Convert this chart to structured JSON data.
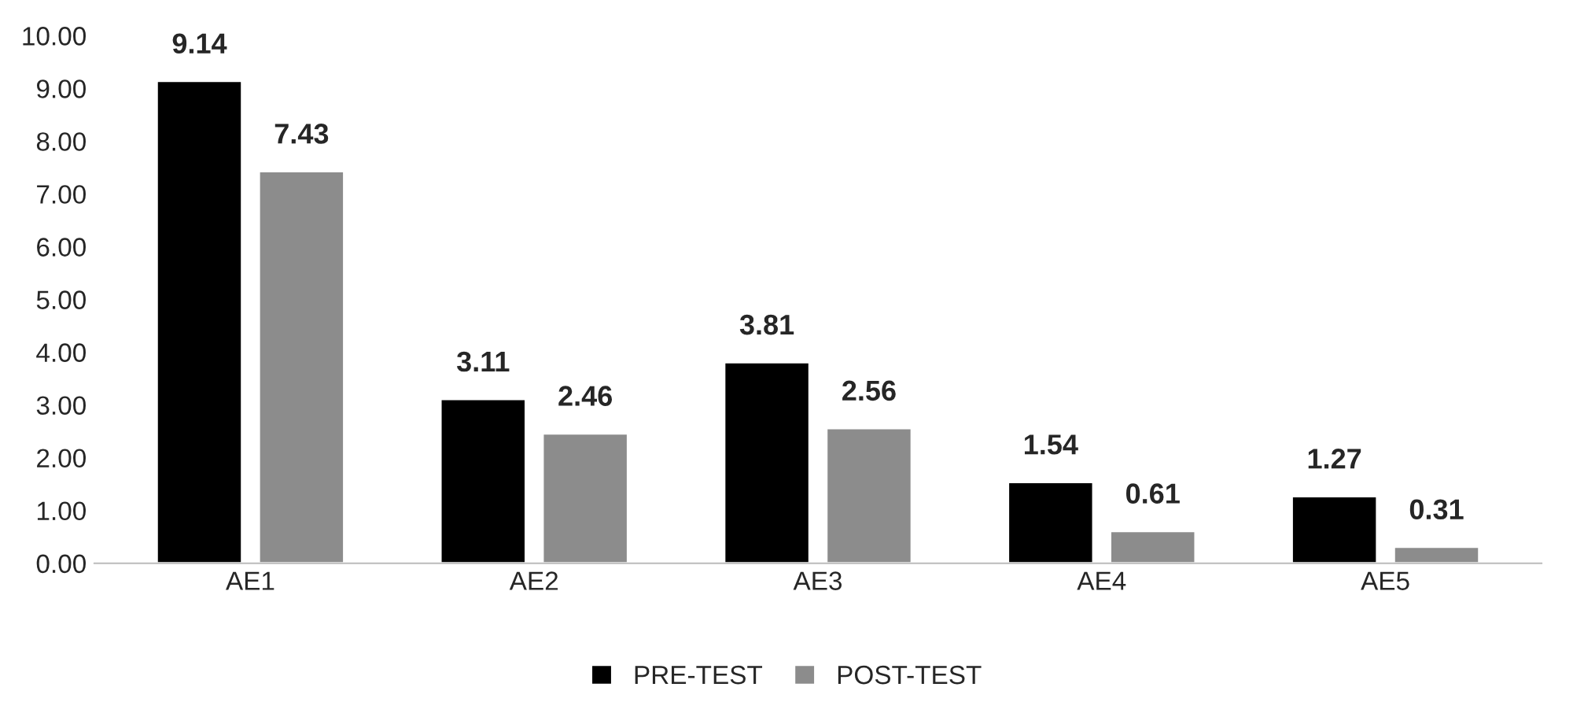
{
  "chart_data": {
    "type": "bar",
    "categories": [
      "AE1",
      "AE2",
      "AE3",
      "AE4",
      "AE5"
    ],
    "series": [
      {
        "name": "PRE-TEST",
        "color": "#000000",
        "values": [
          9.14,
          3.11,
          3.81,
          1.54,
          1.27
        ]
      },
      {
        "name": "POST-TEST",
        "color": "#8c8c8c",
        "values": [
          7.43,
          2.46,
          2.56,
          0.61,
          0.31
        ]
      }
    ],
    "ylim": [
      0,
      10
    ],
    "yticks": [
      {
        "value": 0,
        "label": "0.00"
      },
      {
        "value": 1,
        "label": "1.00"
      },
      {
        "value": 2,
        "label": "2.00"
      },
      {
        "value": 3,
        "label": "3.00"
      },
      {
        "value": 4,
        "label": "4.00"
      },
      {
        "value": 5,
        "label": "5.00"
      },
      {
        "value": 6,
        "label": "6.00"
      },
      {
        "value": 7,
        "label": "7.00"
      },
      {
        "value": 8,
        "label": "8.00"
      },
      {
        "value": 9,
        "label": "9.00"
      },
      {
        "value": 10,
        "label": "10.00"
      }
    ],
    "data_labels": true,
    "grid": false,
    "legend": "bottom"
  }
}
